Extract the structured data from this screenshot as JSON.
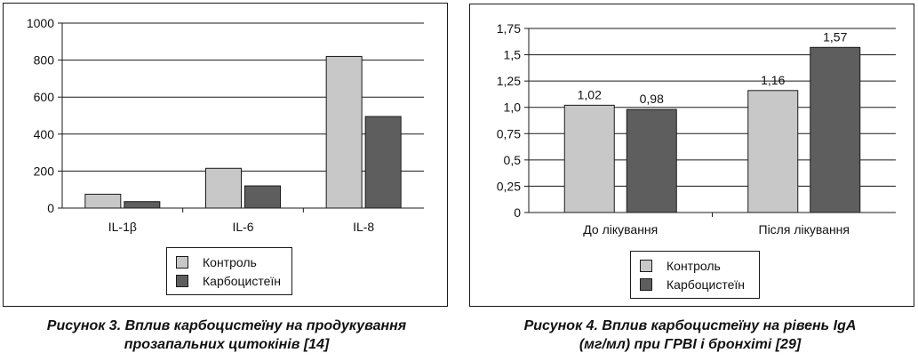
{
  "colors": {
    "control": "#c8c8c8",
    "carbocysteine": "#5e5e5e",
    "axis": "#1a1a1a",
    "grid": "#1a1a1a"
  },
  "legend_labels": [
    "Контроль",
    "Карбоцистеїн"
  ],
  "chart_data": [
    {
      "type": "bar",
      "title": "",
      "xlabel": "",
      "ylabel": "",
      "categories": [
        "IL-1β",
        "IL-6",
        "IL-8"
      ],
      "ylim": [
        0,
        1000
      ],
      "yticks": [
        "0",
        "200",
        "400",
        "600",
        "800",
        "1000"
      ],
      "grid": true,
      "legend_position": "bottom-center",
      "series": [
        {
          "name": "Контроль",
          "values": [
            75,
            215,
            820
          ]
        },
        {
          "name": "Карбоцистеїн",
          "values": [
            35,
            120,
            495
          ]
        }
      ],
      "data_labels": false
    },
    {
      "type": "bar",
      "title": "",
      "xlabel": "",
      "ylabel": "",
      "categories": [
        "До лікування",
        "Після лікування"
      ],
      "ylim": [
        0,
        1.75
      ],
      "yticks": [
        "0",
        "0,25",
        "0,5",
        "0,75",
        "1,0",
        "1,25",
        "1,5",
        "1,75"
      ],
      "grid": true,
      "legend_position": "bottom-center",
      "series": [
        {
          "name": "Контроль",
          "values": [
            1.02,
            1.16
          ],
          "labels": [
            "1,02",
            "1,16"
          ]
        },
        {
          "name": "Карбоцистеїн",
          "values": [
            0.98,
            1.57
          ],
          "labels": [
            "0,98",
            "1,57"
          ]
        }
      ],
      "data_labels": true
    }
  ],
  "captions": {
    "fig3_line1": "Рисунок 3. Вплив карбоцистеїну на продукування",
    "fig3_line2": "прозапальних цитокінів [14]",
    "fig4_line1": "Рисунок 4. Вплив карбоцистеїну на рівень IgA",
    "fig4_line2": "(мг/мл) при ГРВІ і бронхіті [29]"
  }
}
